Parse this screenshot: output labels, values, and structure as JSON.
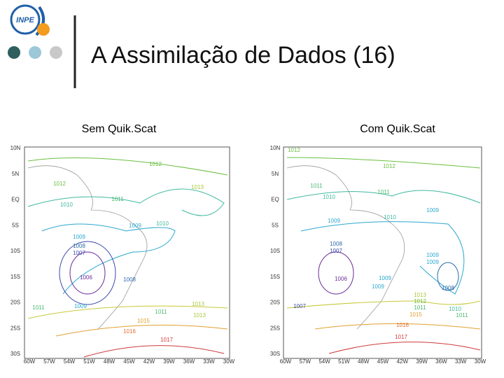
{
  "header": {
    "logo": "INPE",
    "title": "A Assimilação de Dados (16)"
  },
  "panels": [
    {
      "subtitle": "Sem Quik.Scat",
      "lat_labels": [
        "10N",
        "5N",
        "EQ",
        "5S",
        "10S",
        "15S",
        "20S",
        "25S",
        "30S"
      ],
      "lon_labels": [
        "60W",
        "57W",
        "54W",
        "51W",
        "48W",
        "45W",
        "42W",
        "39W",
        "36W",
        "33W",
        "30W"
      ],
      "contour_labels": [
        "1012",
        "1012",
        "1013",
        "1011",
        "1010",
        "1009",
        "1010",
        "1009",
        "1008",
        "1007",
        "1006",
        "1008",
        "1013",
        "1011",
        "1009",
        "1011",
        "1013",
        "1015",
        "1016",
        "1017"
      ]
    },
    {
      "subtitle": "Com Quik.Scat",
      "lat_labels": [
        "10N",
        "5N",
        "EQ",
        "5S",
        "10S",
        "15S",
        "20S",
        "25S",
        "30S"
      ],
      "lon_labels": [
        "60W",
        "57W",
        "54W",
        "51W",
        "48W",
        "45W",
        "42W",
        "39W",
        "36W",
        "33W",
        "30W"
      ],
      "contour_labels": [
        "1012",
        "1012",
        "1011",
        "1011",
        "1010",
        "1010",
        "1009",
        "1009",
        "1008",
        "1007",
        "1009",
        "1009",
        "1006",
        "1009",
        "1009",
        "1008",
        "1013",
        "1012",
        "1011",
        "1010",
        "1011",
        "1007",
        "1015",
        "1016",
        "1017"
      ]
    }
  ]
}
